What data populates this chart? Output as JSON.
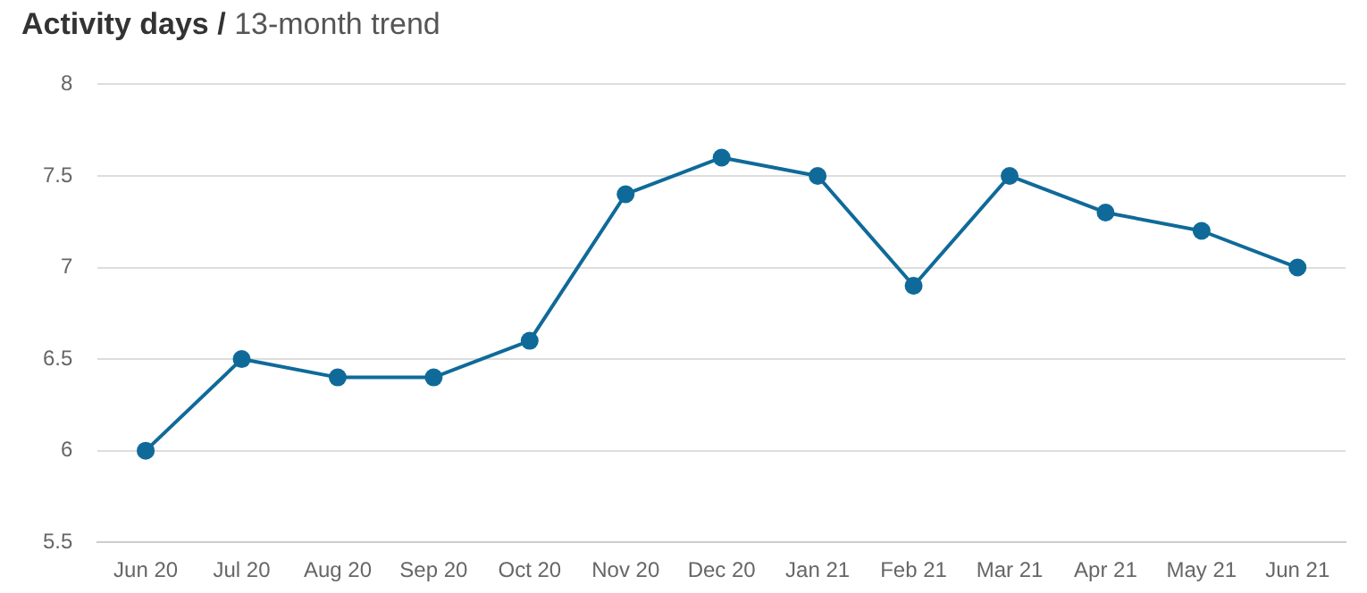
{
  "chart_data": {
    "type": "line",
    "title": "Activity days /",
    "subtitle": "13-month trend",
    "categories": [
      "Jun 20",
      "Jul 20",
      "Aug 20",
      "Sep 20",
      "Oct 20",
      "Nov 20",
      "Dec 20",
      "Jan 21",
      "Feb 21",
      "Mar 21",
      "Apr 21",
      "May 21",
      "Jun 21"
    ],
    "series": [
      {
        "color": "#0f6a99",
        "values": [
          6,
          6.5,
          6.4,
          6.4,
          6.6,
          7.4,
          7.6,
          7.5,
          6.9,
          7.5,
          7.3,
          7.2,
          7.0
        ]
      }
    ],
    "ylim": [
      5.5,
      8
    ],
    "yticks": [
      5.5,
      6,
      6.5,
      7,
      7.5,
      8
    ],
    "grid": "y",
    "legend": false,
    "marker": "circle",
    "line_style": "solid"
  }
}
